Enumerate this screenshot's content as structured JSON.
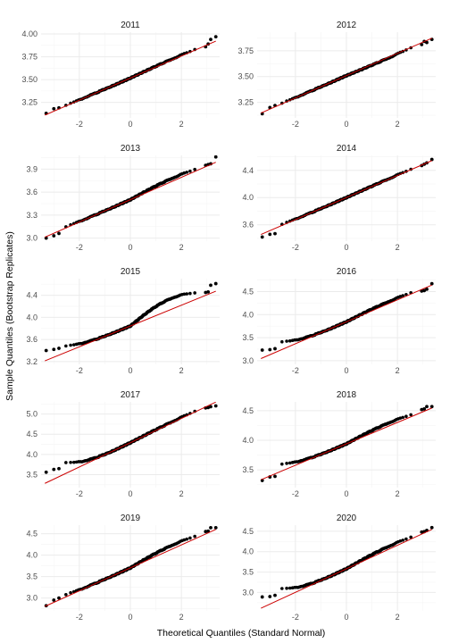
{
  "chart_data": {
    "type": "scatter",
    "xlabel": "Theoretical Quantiles (Standard Normal)",
    "ylabel": "Sample Quantiles (Bootstrap Replicates)",
    "xlim": [
      -3.5,
      3.5
    ],
    "x_ticks": [
      -2,
      0,
      2
    ],
    "grid": true,
    "colors": {
      "points": "#000000",
      "reference_line": "#cc0000",
      "grid_major": "#ebebeb",
      "grid_minor": "#f5f5f5"
    },
    "panels": [
      {
        "label": "2011",
        "ylim": [
          3.08,
          4.02
        ],
        "y_ticks": [
          3.25,
          3.5,
          3.75,
          4.0
        ],
        "y_tick_labels": [
          "3.25",
          "3.50",
          "3.75",
          "4.00"
        ],
        "line": [
          3.516,
          0.121
        ],
        "low_curve": 0.01,
        "high_curve": 0.012,
        "tail_points": [
          [
            -3.3,
            3.13
          ],
          [
            -3.0,
            3.18
          ],
          [
            -2.8,
            3.19
          ],
          [
            2.95,
            3.86
          ],
          [
            3.05,
            3.89
          ],
          [
            3.15,
            3.94
          ],
          [
            3.35,
            3.97
          ]
        ]
      },
      {
        "label": "2012",
        "ylim": [
          3.1,
          3.93
        ],
        "y_ticks": [
          3.25,
          3.5,
          3.75
        ],
        "y_tick_labels": [
          "3.25",
          "3.50",
          "3.75"
        ],
        "line": [
          3.509,
          0.108
        ],
        "low_curve": 0.008,
        "high_curve": -0.008,
        "tail_points": [
          [
            -3.3,
            3.14
          ],
          [
            -3.0,
            3.2
          ],
          [
            -2.8,
            3.22
          ],
          [
            2.95,
            3.81
          ],
          [
            3.05,
            3.84
          ],
          [
            3.15,
            3.83
          ],
          [
            3.35,
            3.86
          ]
        ]
      },
      {
        "label": "2013",
        "ylim": [
          2.96,
          4.08
        ],
        "y_ticks": [
          3.0,
          3.3,
          3.6,
          3.9
        ],
        "y_tick_labels": [
          "3.0",
          "3.3",
          "3.6",
          "3.9"
        ],
        "line": [
          3.501,
          0.146
        ],
        "low_curve": 0.02,
        "high_curve": 0.045,
        "tail_points": [
          [
            -3.3,
            3.0
          ],
          [
            -3.0,
            3.03
          ],
          [
            -2.8,
            3.06
          ],
          [
            2.95,
            3.95
          ],
          [
            3.05,
            3.96
          ],
          [
            3.15,
            3.97
          ],
          [
            3.35,
            4.06
          ]
        ]
      },
      {
        "label": "2014",
        "ylim": [
          3.36,
          4.62
        ],
        "y_ticks": [
          3.6,
          4.0,
          4.4
        ],
        "y_tick_labels": [
          "3.6",
          "4.0",
          "4.4"
        ],
        "line": [
          4.0,
          0.162
        ],
        "low_curve": 0.02,
        "high_curve": 0.008,
        "tail_points": [
          [
            -3.3,
            3.42
          ],
          [
            -3.0,
            3.46
          ],
          [
            -2.8,
            3.47
          ],
          [
            2.95,
            4.47
          ],
          [
            3.05,
            4.49
          ],
          [
            3.15,
            4.51
          ],
          [
            3.35,
            4.56
          ]
        ]
      },
      {
        "label": "2015",
        "ylim": [
          3.15,
          4.7
        ],
        "y_ticks": [
          3.2,
          3.6,
          4.0,
          4.4
        ],
        "y_tick_labels": [
          "3.2",
          "3.6",
          "4.0",
          "4.4"
        ],
        "line": [
          3.843,
          0.188
        ],
        "low_curve": 0.15,
        "high_curve": 0.22,
        "tail_points": [
          [
            -3.3,
            3.4
          ],
          [
            -3.0,
            3.42
          ],
          [
            -2.8,
            3.44
          ],
          [
            2.95,
            4.45
          ],
          [
            3.05,
            4.46
          ],
          [
            3.15,
            4.58
          ],
          [
            3.35,
            4.61
          ]
        ]
      },
      {
        "label": "2016",
        "ylim": [
          2.92,
          4.78
        ],
        "y_ticks": [
          3.0,
          3.5,
          4.0,
          4.5
        ],
        "y_tick_labels": [
          "3.0",
          "3.5",
          "4.0",
          "4.5"
        ],
        "line": [
          3.843,
          0.238
        ],
        "low_curve": 0.22,
        "high_curve": 0.05,
        "tail_points": [
          [
            -3.3,
            3.23
          ],
          [
            -3.0,
            3.24
          ],
          [
            -2.8,
            3.26
          ],
          [
            2.95,
            4.51
          ],
          [
            3.05,
            4.52
          ],
          [
            3.15,
            4.55
          ],
          [
            3.35,
            4.67
          ]
        ]
      },
      {
        "label": "2017",
        "ylim": [
          3.18,
          5.3
        ],
        "y_ticks": [
          3.5,
          4.0,
          4.5,
          5.0
        ],
        "y_tick_labels": [
          "3.5",
          "4.0",
          "4.5",
          "5.0"
        ],
        "line": [
          4.29,
          0.3
        ],
        "low_curve": 0.35,
        "high_curve": 0.03,
        "tail_points": [
          [
            -3.3,
            3.56
          ],
          [
            -3.0,
            3.63
          ],
          [
            -2.8,
            3.65
          ],
          [
            2.95,
            5.15
          ],
          [
            3.05,
            5.16
          ],
          [
            3.15,
            5.18
          ],
          [
            3.35,
            5.2
          ]
        ]
      },
      {
        "label": "2018",
        "ylim": [
          3.2,
          4.65
        ],
        "y_ticks": [
          3.5,
          4.0,
          4.5
        ],
        "y_tick_labels": [
          "3.5",
          "4.0",
          "4.5"
        ],
        "line": [
          3.94,
          0.181
        ],
        "low_curve": 0.15,
        "high_curve": 0.06,
        "tail_points": [
          [
            -3.3,
            3.32
          ],
          [
            -3.0,
            3.38
          ],
          [
            -2.8,
            3.39
          ],
          [
            2.95,
            4.52
          ],
          [
            3.05,
            4.53
          ],
          [
            3.15,
            4.57
          ],
          [
            3.35,
            4.57
          ]
        ]
      },
      {
        "label": "2019",
        "ylim": [
          2.7,
          4.7
        ],
        "y_ticks": [
          3.0,
          3.5,
          4.0,
          4.5
        ],
        "y_tick_labels": [
          "3.0",
          "3.5",
          "4.0",
          "4.5"
        ],
        "line": [
          3.702,
          0.268
        ],
        "low_curve": 0.07,
        "high_curve": 0.1,
        "tail_points": [
          [
            -3.3,
            2.82
          ],
          [
            -3.0,
            2.95
          ],
          [
            -2.8,
            3.0
          ],
          [
            2.95,
            4.55
          ],
          [
            3.05,
            4.56
          ],
          [
            3.15,
            4.64
          ],
          [
            3.35,
            4.64
          ]
        ]
      },
      {
        "label": "2020",
        "ylim": [
          2.55,
          4.65
        ],
        "y_ticks": [
          3.0,
          3.5,
          4.0,
          4.5
        ],
        "y_tick_labels": [
          "3.0",
          "3.5",
          "4.0",
          "4.5"
        ],
        "line": [
          3.58,
          0.288
        ],
        "low_curve": 0.32,
        "high_curve": 0.08,
        "tail_points": [
          [
            -3.3,
            2.89
          ],
          [
            -3.0,
            2.9
          ],
          [
            -2.8,
            2.93
          ],
          [
            2.95,
            4.48
          ],
          [
            3.05,
            4.49
          ],
          [
            3.15,
            4.52
          ],
          [
            3.35,
            4.59
          ]
        ]
      }
    ]
  }
}
